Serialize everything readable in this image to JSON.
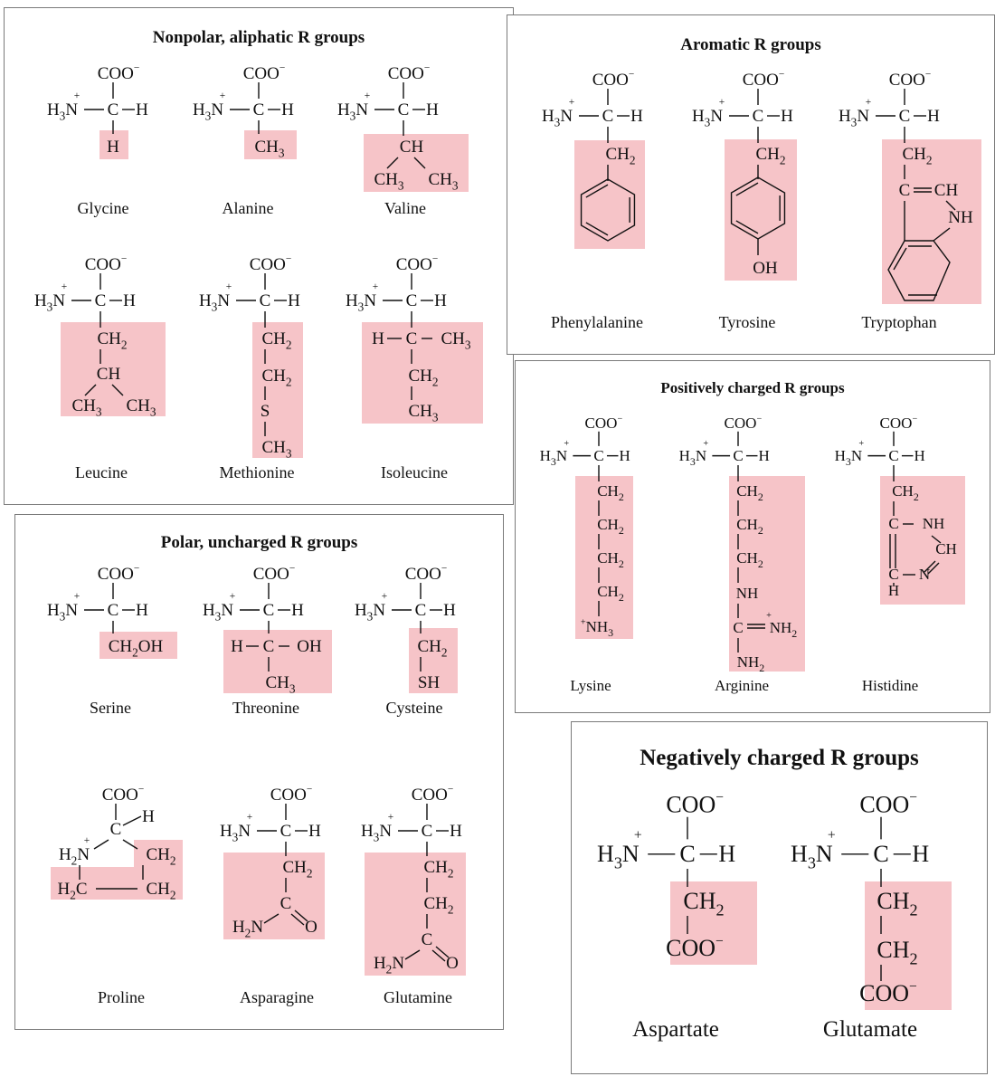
{
  "colors": {
    "highlight": "#f6c4c8",
    "border": "#7a7a7a"
  },
  "panels": {
    "nonpolar": {
      "title": "Nonpolar, aliphatic R groups",
      "names": [
        "Glycine",
        "Alanine",
        "Valine",
        "Leucine",
        "Methionine",
        "Isoleucine"
      ]
    },
    "aromatic": {
      "title": "Aromatic R groups",
      "names": [
        "Phenylalanine",
        "Tyrosine",
        "Tryptophan"
      ]
    },
    "polar": {
      "title": "Polar, uncharged R groups",
      "names": [
        "Serine",
        "Threonine",
        "Cysteine",
        "Proline",
        "Asparagine",
        "Glutamine"
      ]
    },
    "positive": {
      "title": "Positively charged R groups",
      "names": [
        "Lysine",
        "Arginine",
        "Histidine"
      ]
    },
    "negative": {
      "title": "Negatively charged R groups",
      "names": [
        "Aspartate",
        "Glutamate"
      ]
    }
  },
  "labels": {
    "coo": "COO",
    "minus": "−",
    "plus": "+",
    "h3n": "H",
    "n": "N",
    "c": "C",
    "h": "H",
    "ch": "CH",
    "ch2": "CH",
    "ch3": "CH",
    "oh": "OH",
    "sh": "SH",
    "s": "S",
    "nh": "NH",
    "nh2": "NH",
    "nh3": "NH",
    "ch2oh": "CH",
    "o": "O",
    "h2n": "H",
    "h2c": "H",
    "sub2": "2",
    "sub3": "3"
  }
}
